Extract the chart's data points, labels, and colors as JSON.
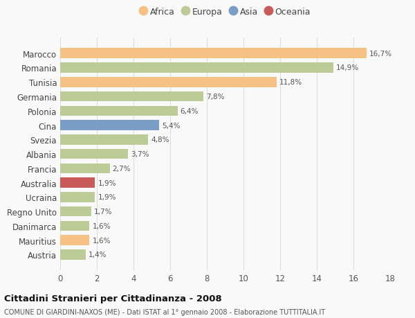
{
  "categories": [
    "Marocco",
    "Romania",
    "Tunisia",
    "Germania",
    "Polonia",
    "Cina",
    "Svezia",
    "Albania",
    "Francia",
    "Australia",
    "Ucraina",
    "Regno Unito",
    "Danimarca",
    "Mauritius",
    "Austria"
  ],
  "values": [
    16.7,
    14.9,
    11.8,
    7.8,
    6.4,
    5.4,
    4.8,
    3.7,
    2.7,
    1.9,
    1.9,
    1.7,
    1.6,
    1.6,
    1.4
  ],
  "labels": [
    "16,7%",
    "14,9%",
    "11,8%",
    "7,8%",
    "6,4%",
    "5,4%",
    "4,8%",
    "3,7%",
    "2,7%",
    "1,9%",
    "1,9%",
    "1,7%",
    "1,6%",
    "1,6%",
    "1,4%"
  ],
  "continents": [
    "Africa",
    "Europa",
    "Africa",
    "Europa",
    "Europa",
    "Asia",
    "Europa",
    "Europa",
    "Europa",
    "Oceania",
    "Europa",
    "Europa",
    "Europa",
    "Africa",
    "Europa"
  ],
  "colors": {
    "Africa": "#F5C185",
    "Europa": "#BDCC96",
    "Asia": "#7B9EC7",
    "Oceania": "#C85A5A"
  },
  "legend_order": [
    "Africa",
    "Europa",
    "Asia",
    "Oceania"
  ],
  "xlim": [
    0,
    18
  ],
  "xticks": [
    0,
    2,
    4,
    6,
    8,
    10,
    12,
    14,
    16,
    18
  ],
  "title": "Cittadini Stranieri per Cittadinanza - 2008",
  "subtitle": "COMUNE DI GIARDINI-NAXOS (ME) - Dati ISTAT al 1° gennaio 2008 - Elaborazione TUTTITALIA.IT",
  "background_color": "#f9f9f9",
  "grid_color": "#dddddd"
}
